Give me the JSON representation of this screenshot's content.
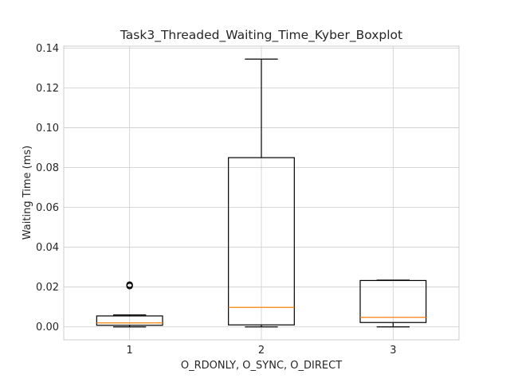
{
  "chart_data": {
    "type": "boxplot",
    "title": "Task3_Threaded_Waiting_Time_Kyber_Boxplot",
    "xlabel": "O_RDONLY, O_SYNC, O_DIRECT",
    "ylabel": "Waiting Time (ms)",
    "ylim": [
      -0.0065,
      0.141
    ],
    "yticks": [
      0.0,
      0.02,
      0.04,
      0.06,
      0.08,
      0.1,
      0.12,
      0.14
    ],
    "ytick_labels": [
      "0.00",
      "0.02",
      "0.04",
      "0.06",
      "0.08",
      "0.10",
      "0.12",
      "0.14"
    ],
    "categories": [
      "1",
      "2",
      "3"
    ],
    "grid": true,
    "boxes": [
      {
        "label": "1",
        "whislo": 0.0,
        "q1": 0.0008,
        "med": 0.002,
        "q3": 0.0055,
        "whishi": 0.006,
        "fliers": [
          0.0205,
          0.021,
          0.0212
        ]
      },
      {
        "label": "2",
        "whislo": 0.0,
        "q1": 0.001,
        "med": 0.0098,
        "q3": 0.085,
        "whishi": 0.1345,
        "fliers": []
      },
      {
        "label": "3",
        "whislo": 0.0,
        "q1": 0.0022,
        "med": 0.0048,
        "q3": 0.0233,
        "whishi": 0.0235,
        "fliers": []
      }
    ],
    "colors": {
      "box": "#000000",
      "median": "#ff7f0e",
      "grid": "#cccccc"
    }
  }
}
